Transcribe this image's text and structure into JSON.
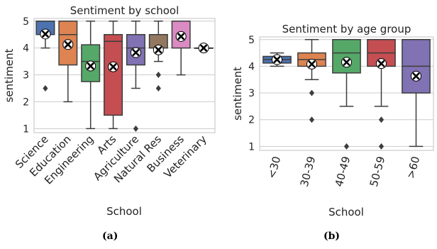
{
  "chart_data": [
    {
      "type": "box",
      "title": "Sentiment by school",
      "xlabel": "School",
      "ylabel": "sentiment",
      "panel_label": "(a)",
      "ylim": [
        0.85,
        5.1
      ],
      "yticks": [
        1,
        2,
        3,
        4,
        5
      ],
      "grid": "horizontal",
      "categories": [
        "Science",
        "Education",
        "Engineering",
        "Arts",
        "Agriculture",
        "Natural Res",
        "Business",
        "Veterinary"
      ],
      "boxes": [
        {
          "color": "#4c72b0",
          "whislo": 4.0,
          "q1": 4.5,
          "med": 5.0,
          "q3": 5.0,
          "whishi": 5.0,
          "mean": 4.52,
          "fliers": [
            2.5
          ]
        },
        {
          "color": "#dd8452",
          "whislo": 2.0,
          "q1": 3.37,
          "med": 4.5,
          "q3": 5.0,
          "whishi": 5.0,
          "mean": 4.13,
          "fliers": []
        },
        {
          "color": "#55a868",
          "whislo": 1.0,
          "q1": 2.75,
          "med": 3.5,
          "q3": 4.12,
          "whishi": 5.0,
          "mean": 3.33,
          "fliers": []
        },
        {
          "color": "#c44e52",
          "whislo": 1.0,
          "q1": 1.5,
          "med": 4.25,
          "q3": 4.5,
          "whishi": 5.0,
          "mean": 3.3,
          "fliers": []
        },
        {
          "color": "#8172b3",
          "whislo": 2.5,
          "q1": 3.37,
          "med": 4.0,
          "q3": 4.5,
          "whishi": 5.0,
          "mean": 3.83,
          "fliers": [
            1.0
          ]
        },
        {
          "color": "#937860",
          "whislo": 3.5,
          "q1": 4.0,
          "med": 4.5,
          "q3": 4.5,
          "whishi": 5.0,
          "mean": 3.93,
          "fliers": [
            3.0,
            2.5
          ]
        },
        {
          "color": "#da8bc3",
          "whislo": 3.0,
          "q1": 4.0,
          "med": 5.0,
          "q3": 5.0,
          "whishi": 5.0,
          "mean": 4.43,
          "fliers": []
        },
        {
          "color": "#8c8c8c",
          "whislo": 4.0,
          "q1": 4.0,
          "med": 4.0,
          "q3": 4.0,
          "whishi": 4.0,
          "mean": 4.0,
          "fliers": []
        }
      ]
    },
    {
      "type": "box",
      "title": "Sentiment by age group",
      "xlabel": "School",
      "ylabel": "sentiment",
      "panel_label": "(b)",
      "ylim": [
        0.85,
        5.1
      ],
      "yticks": [
        1,
        2,
        3,
        4,
        5
      ],
      "grid": "horizontal",
      "categories": [
        "<30",
        "30-39",
        "40-49",
        "50-59",
        ">60"
      ],
      "boxes": [
        {
          "color": "#4c72b0",
          "whislo": 4.0,
          "q1": 4.12,
          "med": 4.25,
          "q3": 4.37,
          "whishi": 4.5,
          "mean": 4.25,
          "fliers": []
        },
        {
          "color": "#dd8452",
          "whislo": 3.5,
          "q1": 4.0,
          "med": 4.25,
          "q3": 4.5,
          "whishi": 5.0,
          "mean": 4.08,
          "fliers": [
            3.0,
            2.0
          ]
        },
        {
          "color": "#55a868",
          "whislo": 2.5,
          "q1": 3.75,
          "med": 4.5,
          "q3": 5.0,
          "whishi": 5.0,
          "mean": 4.15,
          "fliers": [
            1.0
          ]
        },
        {
          "color": "#c44e52",
          "whislo": 2.5,
          "q1": 4.0,
          "med": 4.5,
          "q3": 5.0,
          "whishi": 5.0,
          "mean": 4.1,
          "fliers": [
            2.0,
            1.0
          ]
        },
        {
          "color": "#8172b3",
          "whislo": 1.0,
          "q1": 3.0,
          "med": 4.0,
          "q3": 5.0,
          "whishi": 5.0,
          "mean": 3.63,
          "fliers": []
        }
      ]
    }
  ]
}
